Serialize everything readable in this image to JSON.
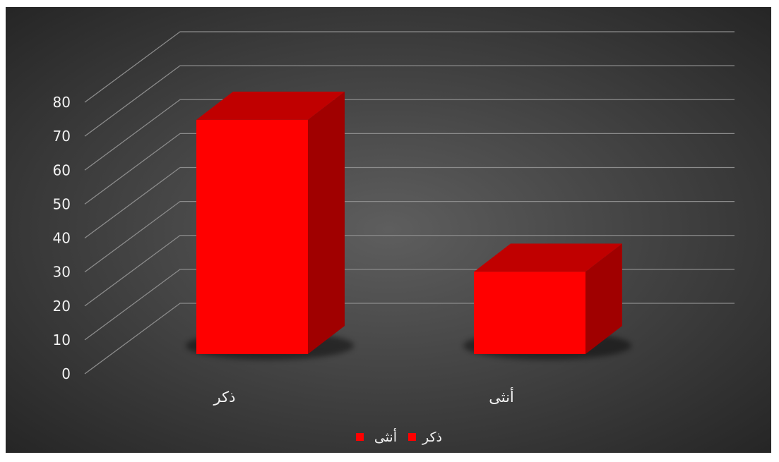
{
  "chart_data": {
    "type": "bar",
    "projection": "3d",
    "categories": [
      "ذكر",
      "أنثى"
    ],
    "series": [
      {
        "values": [
          74,
          26
        ]
      }
    ],
    "ylim": [
      0,
      80
    ],
    "yticks": [
      0,
      10,
      20,
      30,
      40,
      50,
      60,
      70,
      80
    ],
    "grid": true,
    "legend": {
      "position": "bottom",
      "entries": [
        "ذكر",
        "أنثى"
      ]
    },
    "colors": {
      "bar_front": "#ff0000",
      "bar_top": "#c00000",
      "bar_side": "#a00000",
      "background_center": "#595959",
      "background_edge": "#262626",
      "gridline": "#8c8c8c",
      "text": "#f2f2f2"
    }
  }
}
